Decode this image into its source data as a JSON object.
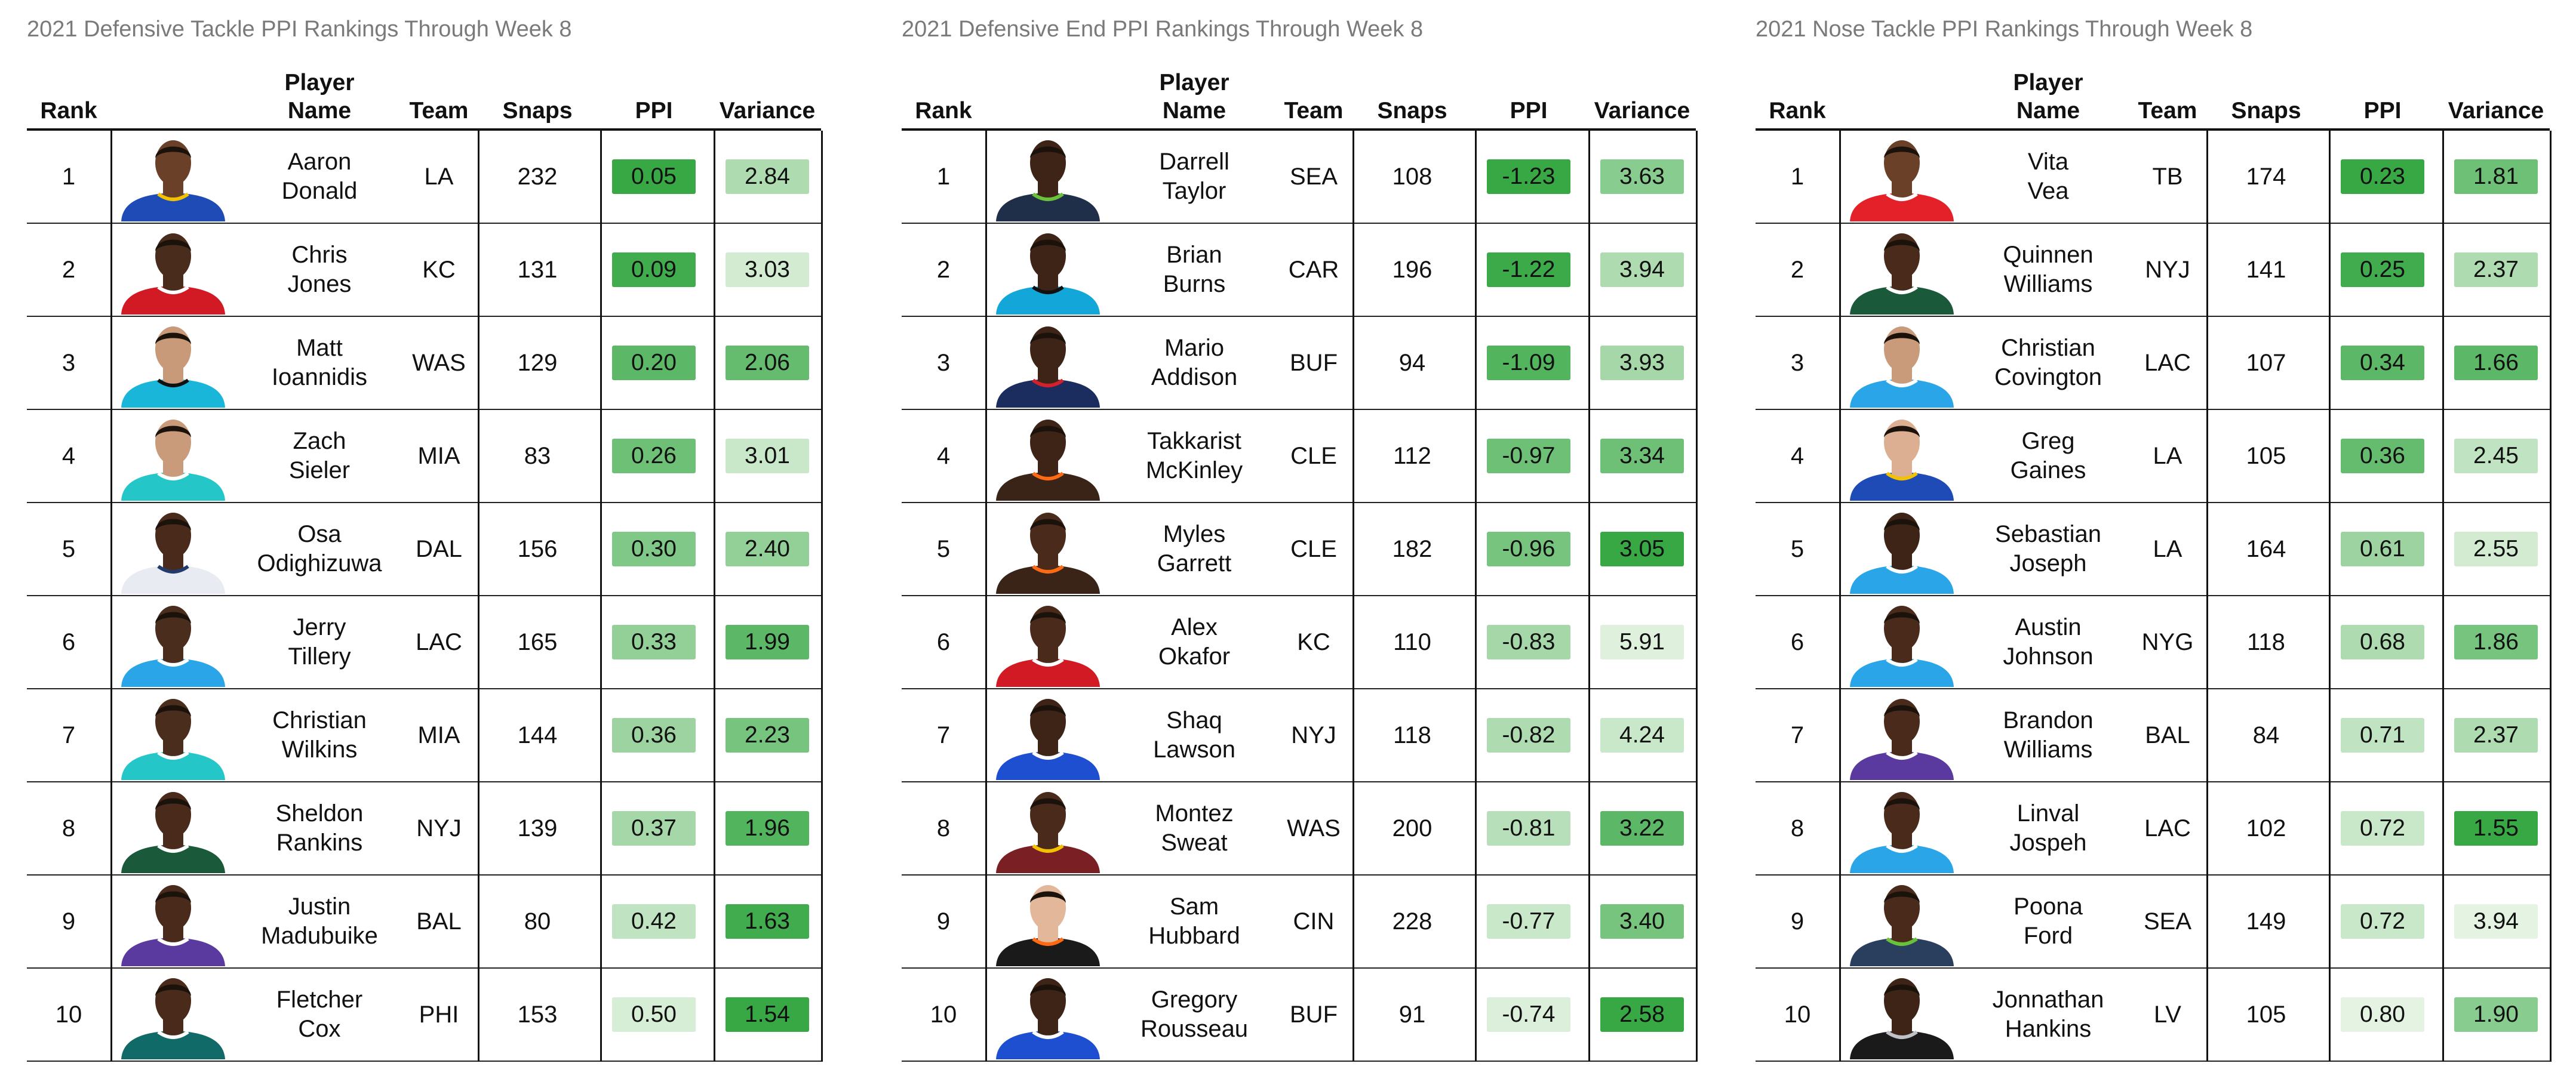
{
  "tables": [
    {
      "title": "2021 Defensive Tackle PPI Rankings Through Week 8",
      "columns": {
        "rank": "Rank",
        "player_line1": "Player",
        "player_line2": "Name",
        "team": "Team",
        "snaps": "Snaps",
        "ppi": "PPI",
        "variance": "Variance"
      },
      "rows": [
        {
          "rank": "1",
          "first": "Aaron",
          "last": "Donald",
          "team": "LA",
          "snaps": "232",
          "ppi": "0.05",
          "variance": "2.84",
          "ppi_shade": 1.0,
          "var_shade": 0.35,
          "jersey": "#1e4bb6",
          "trim": "#f2c200",
          "skin": "#6b4028"
        },
        {
          "rank": "2",
          "first": "Chris",
          "last": "Jones",
          "team": "KC",
          "snaps": "131",
          "ppi": "0.09",
          "variance": "3.03",
          "ppi_shade": 0.95,
          "var_shade": 0.15,
          "jersey": "#d21a24",
          "trim": "#ffffff",
          "skin": "#4a2c1c"
        },
        {
          "rank": "3",
          "first": "Matt",
          "last": "Ioannidis",
          "team": "WAS",
          "snaps": "129",
          "ppi": "0.20",
          "variance": "2.06",
          "ppi_shade": 0.8,
          "var_shade": 0.75,
          "jersey": "#19b6d9",
          "trim": "#111111",
          "skin": "#c89a7a"
        },
        {
          "rank": "4",
          "first": "Zach",
          "last": "Sieler",
          "team": "MIA",
          "snaps": "83",
          "ppi": "0.26",
          "variance": "3.01",
          "ppi_shade": 0.7,
          "var_shade": 0.2,
          "jersey": "#25c6c7",
          "trim": "#ffffff",
          "skin": "#c99b7b"
        },
        {
          "rank": "5",
          "first": "Osa",
          "last": "Odighizuwa",
          "team": "DAL",
          "snaps": "156",
          "ppi": "0.30",
          "variance": "2.40",
          "ppi_shade": 0.6,
          "var_shade": 0.5,
          "jersey": "#e8ecf2",
          "trim": "#233a6b",
          "skin": "#4a2b1b"
        },
        {
          "rank": "6",
          "first": "Jerry",
          "last": "Tillery",
          "team": "LAC",
          "snaps": "165",
          "ppi": "0.33",
          "variance": "1.99",
          "ppi_shade": 0.5,
          "var_shade": 0.8,
          "jersey": "#2aa6e8",
          "trim": "#ffffff",
          "skin": "#4b2d1d"
        },
        {
          "rank": "7",
          "first": "Christian",
          "last": "Wilkins",
          "team": "MIA",
          "snaps": "144",
          "ppi": "0.36",
          "variance": "2.23",
          "ppi_shade": 0.45,
          "var_shade": 0.65,
          "jersey": "#25c6c7",
          "trim": "#ffffff",
          "skin": "#4b2d1d"
        },
        {
          "rank": "8",
          "first": "Sheldon",
          "last": "Rankins",
          "team": "NYJ",
          "snaps": "139",
          "ppi": "0.37",
          "variance": "1.96",
          "ppi_shade": 0.4,
          "var_shade": 0.85,
          "jersey": "#1a5a3a",
          "trim": "#ffffff",
          "skin": "#4a2b1b"
        },
        {
          "rank": "9",
          "first": "Justin",
          "last": "Madubuike",
          "team": "BAL",
          "snaps": "80",
          "ppi": "0.42",
          "variance": "1.63",
          "ppi_shade": 0.25,
          "var_shade": 0.95,
          "jersey": "#5a3a9e",
          "trim": "#ffffff",
          "skin": "#4a2b1b"
        },
        {
          "rank": "10",
          "first": "Fletcher",
          "last": "Cox",
          "team": "PHI",
          "snaps": "153",
          "ppi": "0.50",
          "variance": "1.54",
          "ppi_shade": 0.12,
          "var_shade": 1.0,
          "jersey": "#0f6a68",
          "trim": "#ffffff",
          "skin": "#4a2b1b"
        }
      ]
    },
    {
      "title": "2021 Defensive End PPI Rankings Through Week 8",
      "columns": {
        "rank": "Rank",
        "player_line1": "Player",
        "player_line2": "Name",
        "team": "Team",
        "snaps": "Snaps",
        "ppi": "PPI",
        "variance": "Variance"
      },
      "rows": [
        {
          "rank": "1",
          "first": "Darrell",
          "last": "Taylor",
          "team": "SEA",
          "snaps": "108",
          "ppi": "-1.23",
          "variance": "3.63",
          "ppi_shade": 1.0,
          "var_shade": 0.55,
          "jersey": "#1f2f4a",
          "trim": "#6ac13a",
          "skin": "#3e2416"
        },
        {
          "rank": "2",
          "first": "Brian",
          "last": "Burns",
          "team": "CAR",
          "snaps": "196",
          "ppi": "-1.22",
          "variance": "3.94",
          "ppi_shade": 0.97,
          "var_shade": 0.35,
          "jersey": "#13a6d9",
          "trim": "#111111",
          "skin": "#3e2416"
        },
        {
          "rank": "3",
          "first": "Mario",
          "last": "Addison",
          "team": "BUF",
          "snaps": "94",
          "ppi": "-1.09",
          "variance": "3.93",
          "ppi_shade": 0.85,
          "var_shade": 0.4,
          "jersey": "#1b2d5e",
          "trim": "#d4202b",
          "skin": "#3e2416"
        },
        {
          "rank": "4",
          "first": "Takkarist",
          "last": "McKinley",
          "team": "CLE",
          "snaps": "112",
          "ppi": "-0.97",
          "variance": "3.34",
          "ppi_shade": 0.7,
          "var_shade": 0.7,
          "jersey": "#3a2418",
          "trim": "#ff6a13",
          "skin": "#3e2416"
        },
        {
          "rank": "5",
          "first": "Myles",
          "last": "Garrett",
          "team": "CLE",
          "snaps": "182",
          "ppi": "-0.96",
          "variance": "3.05",
          "ppi_shade": 0.65,
          "var_shade": 1.0,
          "jersey": "#3a2418",
          "trim": "#ff6a13",
          "skin": "#4a2b1b"
        },
        {
          "rank": "6",
          "first": "Alex",
          "last": "Okafor",
          "team": "KC",
          "snaps": "110",
          "ppi": "-0.83",
          "variance": "5.91",
          "ppi_shade": 0.4,
          "var_shade": 0.08,
          "jersey": "#d21a24",
          "trim": "#ffffff",
          "skin": "#4a2b1b"
        },
        {
          "rank": "7",
          "first": "Shaq",
          "last": "Lawson",
          "team": "NYJ",
          "snaps": "118",
          "ppi": "-0.82",
          "variance": "4.24",
          "ppi_shade": 0.35,
          "var_shade": 0.2,
          "jersey": "#1d4fd0",
          "trim": "#ffffff",
          "skin": "#3e2416"
        },
        {
          "rank": "8",
          "first": "Montez",
          "last": "Sweat",
          "team": "WAS",
          "snaps": "200",
          "ppi": "-0.81",
          "variance": "3.22",
          "ppi_shade": 0.3,
          "var_shade": 0.8,
          "jersey": "#7a1f24",
          "trim": "#f2c200",
          "skin": "#4a2b1b"
        },
        {
          "rank": "9",
          "first": "Sam",
          "last": "Hubbard",
          "team": "CIN",
          "snaps": "228",
          "ppi": "-0.77",
          "variance": "3.40",
          "ppi_shade": 0.2,
          "var_shade": 0.65,
          "jersey": "#1a1a1a",
          "trim": "#ff6a13",
          "skin": "#e2b79a"
        },
        {
          "rank": "10",
          "first": "Gregory",
          "last": "Rousseau",
          "team": "BUF",
          "snaps": "91",
          "ppi": "-0.74",
          "variance": "2.58",
          "ppi_shade": 0.1,
          "var_shade": 1.0,
          "jersey": "#1d4fd0",
          "trim": "#ffffff",
          "skin": "#3e2416"
        }
      ]
    },
    {
      "title": "2021 Nose Tackle PPI Rankings Through Week 8",
      "columns": {
        "rank": "Rank",
        "player_line1": "Player",
        "player_line2": "Name",
        "team": "Team",
        "snaps": "Snaps",
        "ppi": "PPI",
        "variance": "Variance"
      },
      "rows": [
        {
          "rank": "1",
          "first": "Vita",
          "last": "Vea",
          "team": "TB",
          "snaps": "174",
          "ppi": "0.23",
          "variance": "1.81",
          "ppi_shade": 1.0,
          "var_shade": 0.7,
          "jersey": "#e42028",
          "trim": "#ffffff",
          "skin": "#6b4028"
        },
        {
          "rank": "2",
          "first": "Quinnen",
          "last": "Williams",
          "team": "NYJ",
          "snaps": "141",
          "ppi": "0.25",
          "variance": "2.37",
          "ppi_shade": 0.95,
          "var_shade": 0.35,
          "jersey": "#1a5a3a",
          "trim": "#ffffff",
          "skin": "#4a2b1b"
        },
        {
          "rank": "3",
          "first": "Christian",
          "last": "Covington",
          "team": "LAC",
          "snaps": "107",
          "ppi": "0.34",
          "variance": "1.66",
          "ppi_shade": 0.8,
          "var_shade": 0.8,
          "jersey": "#2aa6e8",
          "trim": "#ffffff",
          "skin": "#c99b7b"
        },
        {
          "rank": "4",
          "first": "Greg",
          "last": "Gaines",
          "team": "LA",
          "snaps": "105",
          "ppi": "0.36",
          "variance": "2.45",
          "ppi_shade": 0.75,
          "var_shade": 0.25,
          "jersey": "#1e4bb6",
          "trim": "#f2c200",
          "skin": "#dcae92"
        },
        {
          "rank": "5",
          "first": "Sebastian",
          "last": "Joseph",
          "team": "LA",
          "snaps": "164",
          "ppi": "0.61",
          "variance": "2.55",
          "ppi_shade": 0.45,
          "var_shade": 0.15,
          "jersey": "#2aa6e8",
          "trim": "#ffffff",
          "skin": "#3e2416"
        },
        {
          "rank": "6",
          "first": "Austin",
          "last": "Johnson",
          "team": "NYG",
          "snaps": "118",
          "ppi": "0.68",
          "variance": "1.86",
          "ppi_shade": 0.35,
          "var_shade": 0.65,
          "jersey": "#2aa6e8",
          "trim": "#ffffff",
          "skin": "#4a2b1b"
        },
        {
          "rank": "7",
          "first": "Brandon",
          "last": "Williams",
          "team": "BAL",
          "snaps": "84",
          "ppi": "0.71",
          "variance": "2.37",
          "ppi_shade": 0.25,
          "var_shade": 0.35,
          "jersey": "#5a3a9e",
          "trim": "#ffffff",
          "skin": "#4a2b1b"
        },
        {
          "rank": "8",
          "first": "Linval",
          "last": "Jospeh",
          "team": "LAC",
          "snaps": "102",
          "ppi": "0.72",
          "variance": "1.55",
          "ppi_shade": 0.2,
          "var_shade": 1.0,
          "jersey": "#2aa6e8",
          "trim": "#ffffff",
          "skin": "#4a2b1b"
        },
        {
          "rank": "9",
          "first": "Poona",
          "last": "Ford",
          "team": "SEA",
          "snaps": "149",
          "ppi": "0.72",
          "variance": "3.94",
          "ppi_shade": 0.2,
          "var_shade": 0.05,
          "jersey": "#2a3f5e",
          "trim": "#6ac13a",
          "skin": "#4a2b1b"
        },
        {
          "rank": "10",
          "first": "Jonnathan",
          "last": "Hankins",
          "team": "LV",
          "snaps": "105",
          "ppi": "0.80",
          "variance": "1.90",
          "ppi_shade": 0.05,
          "var_shade": 0.55,
          "jersey": "#1a1a1a",
          "trim": "#bfc3c7",
          "skin": "#3e2416"
        }
      ]
    }
  ],
  "scale_colors": {
    "low": "#edf7ea",
    "high": "#38a845"
  }
}
